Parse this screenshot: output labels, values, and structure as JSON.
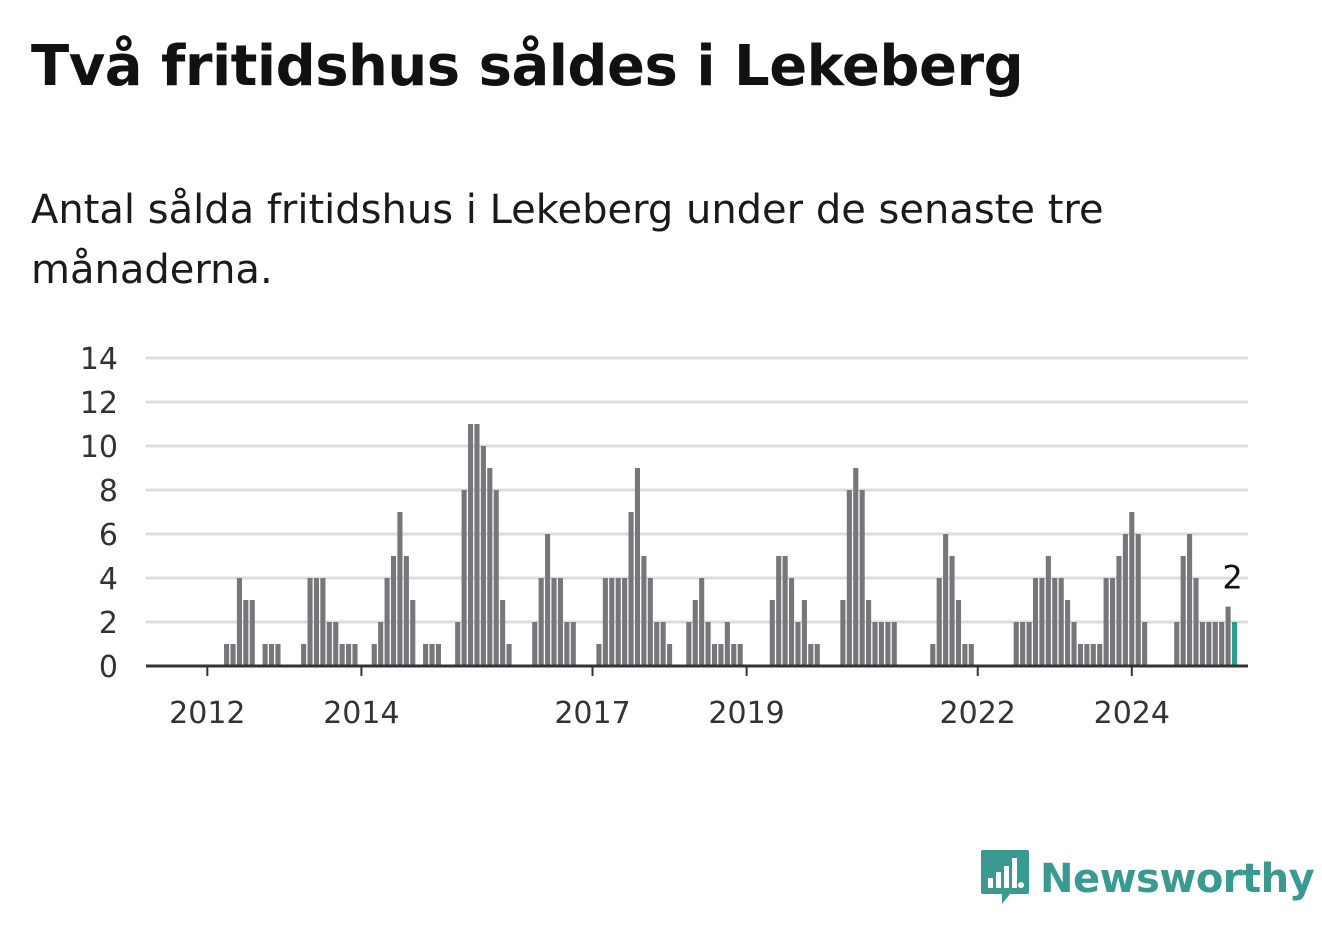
{
  "header": {
    "title": "Två fritidshus såldes i Lekeberg",
    "subtitle": "Antal sålda fritidshus i Lekeberg under de senaste tre månaderna."
  },
  "brand": {
    "name": "Newsworthy",
    "icon": "newsworthy-logo-icon",
    "color": "#3a9a92"
  },
  "colors": {
    "bar": "#76767b",
    "highlight": "#2a9d93",
    "grid": "#dcdcdc",
    "axis": "#333333"
  },
  "chart_data": {
    "type": "bar",
    "title": "",
    "xlabel": "",
    "ylabel": "",
    "ylim": [
      0,
      14
    ],
    "yticks": [
      "0",
      "2",
      "4",
      "6",
      "8",
      "10",
      "12",
      "14"
    ],
    "grid": true,
    "x_tick_labels": [
      {
        "label": "2012",
        "index": 9
      },
      {
        "label": "2014",
        "index": 33
      },
      {
        "label": "2017",
        "index": 69
      },
      {
        "label": "2019",
        "index": 93
      },
      {
        "label": "2022",
        "index": 129
      },
      {
        "label": "2024",
        "index": 153
      }
    ],
    "highlight_label": "2",
    "series": [
      {
        "values": [
          0,
          0,
          0,
          0,
          0,
          0,
          0,
          0,
          0,
          0,
          0,
          0,
          1,
          1,
          4,
          3,
          3,
          0,
          1,
          1,
          1,
          0,
          0,
          0,
          1,
          4,
          4,
          4,
          2,
          2,
          1,
          1,
          1,
          0,
          0,
          1,
          2,
          4,
          5,
          7,
          5,
          3,
          0,
          1,
          1,
          1,
          0,
          0,
          2,
          8,
          11,
          11,
          10,
          9,
          8,
          3,
          1,
          0,
          0,
          0,
          2,
          4,
          6,
          4,
          4,
          2,
          2,
          0,
          0,
          0,
          1,
          4,
          4,
          4,
          4,
          7,
          9,
          5,
          4,
          2,
          2,
          1,
          0,
          0,
          2,
          3,
          4,
          2,
          1,
          1,
          2,
          1,
          1,
          0,
          0,
          0,
          0,
          3,
          5,
          5,
          4,
          2,
          3,
          1,
          1,
          0,
          0,
          0,
          3,
          8,
          9,
          8,
          3,
          2,
          2,
          2,
          2,
          0,
          0,
          0,
          0,
          0,
          1,
          4,
          6,
          5,
          3,
          1,
          1,
          0,
          0,
          0,
          0,
          0,
          0,
          2,
          2,
          2,
          4,
          4,
          5,
          4,
          4,
          3,
          2,
          1,
          1,
          1,
          1,
          4,
          4,
          5,
          6,
          7,
          6,
          2,
          0,
          0,
          0,
          0,
          2,
          5,
          6,
          4,
          2,
          2,
          2,
          2,
          2.7,
          2
        ]
      }
    ]
  }
}
